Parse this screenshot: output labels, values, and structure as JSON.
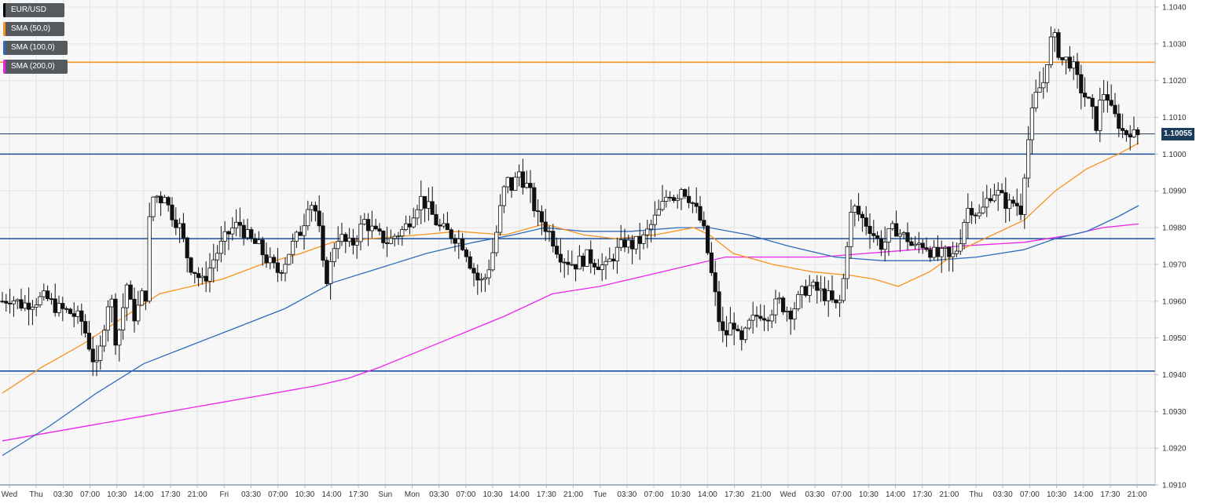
{
  "legend": {
    "items": [
      {
        "label": "EUR/USD",
        "color": "#000000"
      },
      {
        "label": "SMA (50,0)",
        "color": "#f7931e"
      },
      {
        "label": "SMA (100,0)",
        "color": "#2e6bbd"
      },
      {
        "label": "SMA (200,0)",
        "color": "#ee22ee"
      }
    ]
  },
  "current_price_label": "1.10055",
  "chart_data": {
    "type": "candlestick",
    "symbol": "EUR/USD",
    "ylim": [
      1.091,
      1.104
    ],
    "y_ticks": [
      "1.0910",
      "1.0920",
      "1.0930",
      "1.0940",
      "1.0950",
      "1.0960",
      "1.0970",
      "1.0980",
      "1.0990",
      "1.1000",
      "1.1010",
      "1.1020",
      "1.1030",
      "1.1040"
    ],
    "x_ticks": [
      "Wed",
      "Thu",
      "03:30",
      "07:00",
      "10:30",
      "14:00",
      "17:30",
      "21:00",
      "Fri",
      "03:30",
      "07:00",
      "10:30",
      "14:00",
      "17:30",
      "Sun",
      "Mon",
      "03:30",
      "07:00",
      "10:30",
      "14:00",
      "17:30",
      "21:00",
      "Tue",
      "03:30",
      "07:00",
      "10:30",
      "14:00",
      "17:30",
      "21:00",
      "Wed",
      "03:30",
      "07:00",
      "10:30",
      "14:00",
      "17:30",
      "21:00",
      "Thu",
      "03:30",
      "07:00",
      "10:30",
      "14:00",
      "17:30",
      "21:00"
    ],
    "current_price": 1.10055,
    "horizontal_levels": [
      {
        "value": 1.1025,
        "color": "#f7931e"
      },
      {
        "value": 1.1,
        "color": "#1a4f9c"
      },
      {
        "value": 1.0977,
        "color": "#1a4f9c"
      },
      {
        "value": 1.0941,
        "color": "#1a4f9c"
      },
      {
        "value": 1.091,
        "color": "#1a4f9c"
      }
    ],
    "price_path": [
      [
        0,
        1.096
      ],
      [
        10,
        1.0961
      ],
      [
        25,
        1.0959
      ],
      [
        40,
        1.096
      ],
      [
        55,
        1.0961
      ],
      [
        70,
        1.0958
      ],
      [
        85,
        1.0957
      ],
      [
        100,
        1.0955
      ],
      [
        108,
        1.095
      ],
      [
        114,
        1.0945
      ],
      [
        120,
        1.0942
      ],
      [
        126,
        1.0948
      ],
      [
        132,
        1.0958
      ],
      [
        138,
        1.0962
      ],
      [
        144,
        1.095
      ],
      [
        150,
        1.0953
      ],
      [
        158,
        1.0965
      ],
      [
        164,
        1.0958
      ],
      [
        170,
        1.0955
      ],
      [
        176,
        1.0962
      ],
      [
        182,
        1.096
      ],
      [
        188,
        1.0985
      ],
      [
        194,
        1.099
      ],
      [
        200,
        1.0987
      ],
      [
        206,
        1.099
      ],
      [
        212,
        1.0985
      ],
      [
        218,
        1.0983
      ],
      [
        226,
        1.098
      ],
      [
        232,
        1.0975
      ],
      [
        238,
        1.097
      ],
      [
        246,
        1.0968
      ],
      [
        254,
        1.0965
      ],
      [
        262,
        1.0968
      ],
      [
        270,
        1.0972
      ],
      [
        278,
        1.0975
      ],
      [
        286,
        1.0978
      ],
      [
        294,
        1.098
      ],
      [
        302,
        1.0981
      ],
      [
        310,
        1.0978
      ],
      [
        318,
        1.0976
      ],
      [
        326,
        1.0975
      ],
      [
        334,
        1.0972
      ],
      [
        342,
        1.097
      ],
      [
        350,
        1.0968
      ],
      [
        358,
        1.097
      ],
      [
        366,
        1.0974
      ],
      [
        374,
        1.0977
      ],
      [
        382,
        1.098
      ],
      [
        390,
        1.0988
      ],
      [
        398,
        1.0985
      ],
      [
        404,
        1.0978
      ],
      [
        410,
        1.0965
      ],
      [
        416,
        1.0968
      ],
      [
        422,
        1.0975
      ],
      [
        428,
        1.0978
      ],
      [
        436,
        1.0976
      ],
      [
        444,
        1.0975
      ],
      [
        452,
        1.0978
      ],
      [
        460,
        1.0982
      ],
      [
        468,
        1.098
      ],
      [
        476,
        1.0978
      ],
      [
        484,
        1.0977
      ],
      [
        492,
        1.0976
      ],
      [
        500,
        1.0978
      ],
      [
        508,
        1.0979
      ],
      [
        516,
        1.0981
      ],
      [
        524,
        1.0985
      ],
      [
        532,
        1.0988
      ],
      [
        540,
        1.0986
      ],
      [
        548,
        1.0983
      ],
      [
        556,
        1.098
      ],
      [
        564,
        1.0979
      ],
      [
        572,
        1.0978
      ],
      [
        580,
        1.0977
      ],
      [
        588,
        1.0975
      ],
      [
        596,
        1.097
      ],
      [
        604,
        1.0966
      ],
      [
        612,
        1.0965
      ],
      [
        620,
        1.097
      ],
      [
        626,
        1.0975
      ],
      [
        632,
        1.0983
      ],
      [
        638,
        1.099
      ],
      [
        644,
        1.0993
      ],
      [
        650,
        1.099
      ],
      [
        656,
        1.0996
      ],
      [
        662,
        1.0993
      ],
      [
        668,
        1.0991
      ],
      [
        674,
        1.0988
      ],
      [
        680,
        1.0983
      ],
      [
        686,
        1.0982
      ],
      [
        692,
        1.098
      ],
      [
        698,
        1.0978
      ],
      [
        704,
        1.0975
      ],
      [
        712,
        1.0972
      ],
      [
        720,
        1.0971
      ],
      [
        728,
        1.097
      ],
      [
        736,
        1.0971
      ],
      [
        744,
        1.0972
      ],
      [
        752,
        1.0971
      ],
      [
        760,
        1.097
      ],
      [
        768,
        1.0969
      ],
      [
        776,
        1.0972
      ],
      [
        784,
        1.0974
      ],
      [
        792,
        1.0976
      ],
      [
        800,
        1.0975
      ],
      [
        808,
        1.0976
      ],
      [
        816,
        1.0977
      ],
      [
        824,
        1.098
      ],
      [
        832,
        1.0983
      ],
      [
        840,
        1.0986
      ],
      [
        848,
        1.099
      ],
      [
        856,
        1.0988
      ],
      [
        864,
        1.0991
      ],
      [
        872,
        1.0989
      ],
      [
        880,
        1.0986
      ],
      [
        888,
        1.0982
      ],
      [
        894,
        1.0978
      ],
      [
        900,
        1.097
      ],
      [
        906,
        1.0963
      ],
      [
        912,
        1.0955
      ],
      [
        918,
        1.095
      ],
      [
        924,
        1.0952
      ],
      [
        930,
        1.0955
      ],
      [
        936,
        1.095
      ],
      [
        942,
        1.0948
      ],
      [
        948,
        1.0953
      ],
      [
        956,
        1.0955
      ],
      [
        964,
        1.0957
      ],
      [
        972,
        1.0956
      ],
      [
        980,
        1.0958
      ],
      [
        988,
        1.096
      ],
      [
        996,
        1.0958
      ],
      [
        1004,
        1.0957
      ],
      [
        1012,
        1.096
      ],
      [
        1020,
        1.0963
      ],
      [
        1028,
        1.0964
      ],
      [
        1036,
        1.0963
      ],
      [
        1044,
        1.0962
      ],
      [
        1052,
        1.0961
      ],
      [
        1058,
        1.0959
      ],
      [
        1064,
        1.0958
      ],
      [
        1070,
        1.0965
      ],
      [
        1076,
        1.0978
      ],
      [
        1082,
        1.0986
      ],
      [
        1088,
        1.0984
      ],
      [
        1096,
        1.0982
      ],
      [
        1104,
        1.098
      ],
      [
        1112,
        1.0977
      ],
      [
        1120,
        1.0975
      ],
      [
        1128,
        1.0978
      ],
      [
        1136,
        1.098
      ],
      [
        1144,
        1.0978
      ],
      [
        1152,
        1.0977
      ],
      [
        1160,
        1.0974
      ],
      [
        1168,
        1.0976
      ],
      [
        1176,
        1.0975
      ],
      [
        1184,
        1.0973
      ],
      [
        1192,
        1.0972
      ],
      [
        1200,
        1.0973
      ],
      [
        1206,
        1.0971
      ],
      [
        1212,
        1.0973
      ],
      [
        1218,
        1.0976
      ],
      [
        1224,
        1.0982
      ],
      [
        1230,
        1.0986
      ],
      [
        1236,
        1.0985
      ],
      [
        1242,
        1.0983
      ],
      [
        1248,
        1.0985
      ],
      [
        1256,
        1.0989
      ],
      [
        1264,
        1.099
      ],
      [
        1272,
        1.0988
      ],
      [
        1280,
        1.0986
      ],
      [
        1288,
        1.0987
      ],
      [
        1296,
        1.0985
      ],
      [
        1302,
        1.0998
      ],
      [
        1308,
        1.1008
      ],
      [
        1314,
        1.1015
      ],
      [
        1320,
        1.1018
      ],
      [
        1326,
        1.102
      ],
      [
        1332,
        1.103
      ],
      [
        1338,
        1.1032
      ],
      [
        1344,
        1.1028
      ],
      [
        1350,
        1.1025
      ],
      [
        1356,
        1.1026
      ],
      [
        1362,
        1.1024
      ],
      [
        1368,
        1.102
      ],
      [
        1374,
        1.1017
      ],
      [
        1380,
        1.1015
      ],
      [
        1386,
        1.1012
      ],
      [
        1392,
        1.1008
      ],
      [
        1398,
        1.1015
      ],
      [
        1404,
        1.1018
      ],
      [
        1410,
        1.1012
      ],
      [
        1416,
        1.101
      ],
      [
        1422,
        1.1008
      ],
      [
        1428,
        1.1005
      ],
      [
        1434,
        1.1007
      ],
      [
        1440,
        1.1005
      ],
      [
        1446,
        1.10055
      ]
    ],
    "sma50": [
      [
        0,
        1.0935
      ],
      [
        50,
        1.0942
      ],
      [
        100,
        1.0948
      ],
      [
        150,
        1.0955
      ],
      [
        200,
        1.0962
      ],
      [
        240,
        1.0964
      ],
      [
        280,
        1.0966
      ],
      [
        330,
        1.097
      ],
      [
        380,
        1.0973
      ],
      [
        420,
        1.0976
      ],
      [
        470,
        1.0977
      ],
      [
        530,
        1.0978
      ],
      [
        580,
        1.0979
      ],
      [
        640,
        1.0978
      ],
      [
        690,
        1.0981
      ],
      [
        740,
        1.0978
      ],
      [
        780,
        1.0977
      ],
      [
        830,
        1.0978
      ],
      [
        880,
        1.098
      ],
      [
        900,
        1.0978
      ],
      [
        930,
        1.0973
      ],
      [
        980,
        1.097
      ],
      [
        1030,
        1.0968
      ],
      [
        1080,
        1.0967
      ],
      [
        1110,
        1.0966
      ],
      [
        1140,
        1.0964
      ],
      [
        1180,
        1.0968
      ],
      [
        1220,
        1.0974
      ],
      [
        1260,
        1.0978
      ],
      [
        1300,
        1.0982
      ],
      [
        1340,
        1.099
      ],
      [
        1380,
        1.0996
      ],
      [
        1420,
        1.1
      ],
      [
        1446,
        1.1003
      ]
    ],
    "sma100": [
      [
        0,
        1.0918
      ],
      [
        60,
        1.0926
      ],
      [
        120,
        1.0935
      ],
      [
        180,
        1.0943
      ],
      [
        240,
        1.0948
      ],
      [
        300,
        1.0953
      ],
      [
        360,
        1.0958
      ],
      [
        420,
        1.0965
      ],
      [
        480,
        1.0969
      ],
      [
        540,
        1.0973
      ],
      [
        600,
        1.0976
      ],
      [
        650,
        1.0978
      ],
      [
        690,
        1.098
      ],
      [
        740,
        1.0979
      ],
      [
        800,
        1.0979
      ],
      [
        860,
        1.098
      ],
      [
        900,
        1.098
      ],
      [
        950,
        1.0978
      ],
      [
        1000,
        1.0975
      ],
      [
        1060,
        1.0972
      ],
      [
        1120,
        1.0971
      ],
      [
        1180,
        1.0971
      ],
      [
        1240,
        1.0972
      ],
      [
        1300,
        1.0974
      ],
      [
        1340,
        1.0977
      ],
      [
        1380,
        1.0979
      ],
      [
        1420,
        1.0983
      ],
      [
        1446,
        1.0986
      ]
    ],
    "sma200": [
      [
        0,
        1.0922
      ],
      [
        80,
        1.0925
      ],
      [
        160,
        1.0928
      ],
      [
        240,
        1.0931
      ],
      [
        320,
        1.0934
      ],
      [
        400,
        1.0937
      ],
      [
        440,
        1.0939
      ],
      [
        480,
        1.0942
      ],
      [
        560,
        1.0949
      ],
      [
        640,
        1.0956
      ],
      [
        700,
        1.0962
      ],
      [
        760,
        1.0964
      ],
      [
        820,
        1.0967
      ],
      [
        880,
        1.097
      ],
      [
        920,
        1.0972
      ],
      [
        980,
        1.0972
      ],
      [
        1040,
        1.0972
      ],
      [
        1100,
        1.0973
      ],
      [
        1160,
        1.0974
      ],
      [
        1220,
        1.0975
      ],
      [
        1300,
        1.0976
      ],
      [
        1360,
        1.0978
      ],
      [
        1400,
        1.098
      ],
      [
        1446,
        1.0981
      ]
    ]
  }
}
